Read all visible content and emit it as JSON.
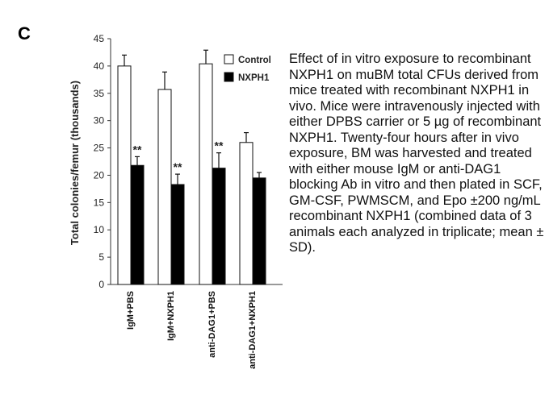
{
  "panel_label": "C",
  "caption": "Effect of in vitro exposure to recombinant NXPH1 on muBM total CFUs derived from mice treated with recombinant NXPH1 in vivo. Mice were intravenously injected with either DPBS carrier or 5 µg of recombinant NXPH1. Twenty-four hours after in vivo exposure, BM was harvested and treated with either mouse IgM or anti-DAG1 blocking Ab in vitro and then plated in SCF, GM-CSF, PWMSCM, and Epo ±200 ng/mL recombinant NXPH1 (combined data of 3 animals each analyzed in triplicate; mean ± SD).",
  "chart_data": {
    "type": "bar",
    "title": "",
    "xlabel": "",
    "ylabel": "Total colonies/femur (thousands)",
    "ylim": [
      0,
      45
    ],
    "yticks": [
      0,
      5,
      10,
      15,
      20,
      25,
      30,
      35,
      40,
      45
    ],
    "categories": [
      "IgM+PBS",
      "IgM+NXPH1",
      "anti-DAG1+PBS",
      "anti-DAG1+NXPH1"
    ],
    "series": [
      {
        "name": "Control",
        "color": "#ffffff",
        "values": [
          40.0,
          35.7,
          40.4,
          26.0
        ],
        "errors": [
          2.0,
          3.2,
          2.5,
          1.8
        ],
        "significance": [
          "",
          "",
          "",
          ""
        ]
      },
      {
        "name": "NXPH1",
        "color": "#000000",
        "values": [
          21.8,
          18.3,
          21.3,
          19.5
        ],
        "errors": [
          1.6,
          1.9,
          2.8,
          1.0
        ],
        "significance": [
          "**",
          "**",
          "**",
          ""
        ]
      }
    ],
    "legend_position": "top-right",
    "grid": false
  }
}
